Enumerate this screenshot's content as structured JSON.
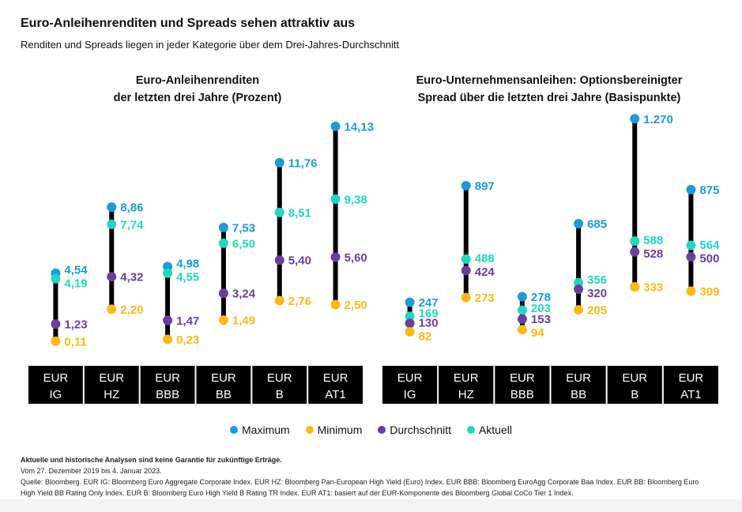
{
  "title": "Euro-Anleihenrenditen und Spreads sehen attraktiv aus",
  "subtitle": "Renditen und Spreads liegen in jeder Kategorie über dem Drei-Jahres-Durchschnitt",
  "legend": [
    {
      "label": "Maximum",
      "color": "#1a9bdc"
    },
    {
      "label": "Minimum",
      "color": "#fdb913"
    },
    {
      "label": "Durchschnitt",
      "color": "#6a3ea1"
    },
    {
      "label": "Aktuell",
      "color": "#1fd8c0"
    }
  ],
  "footer": {
    "disclaimer": "Aktuelle und historische Analysen sind keine Garantie für zukünftige Erträge.",
    "period": "Vom 27. Dezember 2019 bis 4. Januar 2023.",
    "source_1": "Quelle: Bloomberg. EUR IG: Bloomberg Euro Aggregate Corporate Index. EUR HZ: Bloomberg Pan-European High Yield (Euro) Index. EUR BBB: Bloomberg EuroAgg Corporate Baa Index. EUR BB: Bloomberg Euro",
    "source_2": "High Yield BB Rating Only Index. EUR B: Bloomberg Euro High Yield B Rating TR Index. EUR AT1: basiert auf der EUR-Komponente des Bloomberg Global CoCo Tier 1 Index."
  },
  "chart_data": [
    {
      "type": "range-dot",
      "title_line1": "Euro-Anleihenrenditen",
      "title_line2": "der letzten drei Jahre (Prozent)",
      "categories": [
        [
          "EUR",
          "IG"
        ],
        [
          "EUR",
          "HZ"
        ],
        [
          "EUR",
          "BBB"
        ],
        [
          "EUR",
          "BB"
        ],
        [
          "EUR",
          "B"
        ],
        [
          "EUR",
          "AT1"
        ]
      ],
      "series": [
        {
          "name": "Maximum",
          "values": [
            4.54,
            8.86,
            4.98,
            7.53,
            11.76,
            14.13
          ],
          "labels": [
            "4,54",
            "8,86",
            "4,98",
            "7,53",
            "11,76",
            "14,13"
          ]
        },
        {
          "name": "Minimum",
          "values": [
            0.11,
            2.2,
            0.23,
            1.49,
            2.76,
            2.5
          ],
          "labels": [
            "0,11",
            "2,20",
            "0,23",
            "1,49",
            "2,76",
            "2,50"
          ]
        },
        {
          "name": "Durchschnitt",
          "values": [
            1.23,
            4.32,
            1.47,
            3.24,
            5.4,
            5.6
          ],
          "labels": [
            "1,23",
            "4,32",
            "1,47",
            "3,24",
            "5,40",
            "5,60"
          ]
        },
        {
          "name": "Aktuell",
          "values": [
            4.19,
            7.74,
            4.55,
            6.5,
            8.51,
            9.38
          ],
          "labels": [
            "4,19",
            "7,74",
            "4,55",
            "6,50",
            "8,51",
            "9,38"
          ]
        }
      ],
      "ylim": [
        0,
        14.5
      ]
    },
    {
      "type": "range-dot",
      "title_line1": "Euro-Unternehmensanleihen: Optionsbereinigter",
      "title_line2": "Spread über die letzten drei Jahre (Basispunkte)",
      "categories": [
        [
          "EUR",
          "IG"
        ],
        [
          "EUR",
          "HZ"
        ],
        [
          "EUR",
          "BBB"
        ],
        [
          "EUR",
          "BB"
        ],
        [
          "EUR",
          "B"
        ],
        [
          "EUR",
          "AT1"
        ]
      ],
      "series": [
        {
          "name": "Maximum",
          "values": [
            247,
            897,
            278,
            685,
            1270,
            875
          ],
          "labels": [
            "247",
            "897",
            "278",
            "685",
            "1.270",
            "875"
          ]
        },
        {
          "name": "Minimum",
          "values": [
            82,
            273,
            94,
            205,
            333,
            309
          ],
          "labels": [
            "82",
            "273",
            "94",
            "205",
            "333",
            "309"
          ]
        },
        {
          "name": "Durchschnitt",
          "values": [
            130,
            424,
            153,
            320,
            528,
            500
          ],
          "labels": [
            "130",
            "424",
            "153",
            "320",
            "528",
            "500"
          ]
        },
        {
          "name": "Aktuell",
          "values": [
            169,
            488,
            203,
            356,
            588,
            564
          ],
          "labels": [
            "169",
            "488",
            "203",
            "356",
            "588",
            "564"
          ]
        }
      ],
      "ylim": [
        0,
        1300
      ]
    }
  ]
}
